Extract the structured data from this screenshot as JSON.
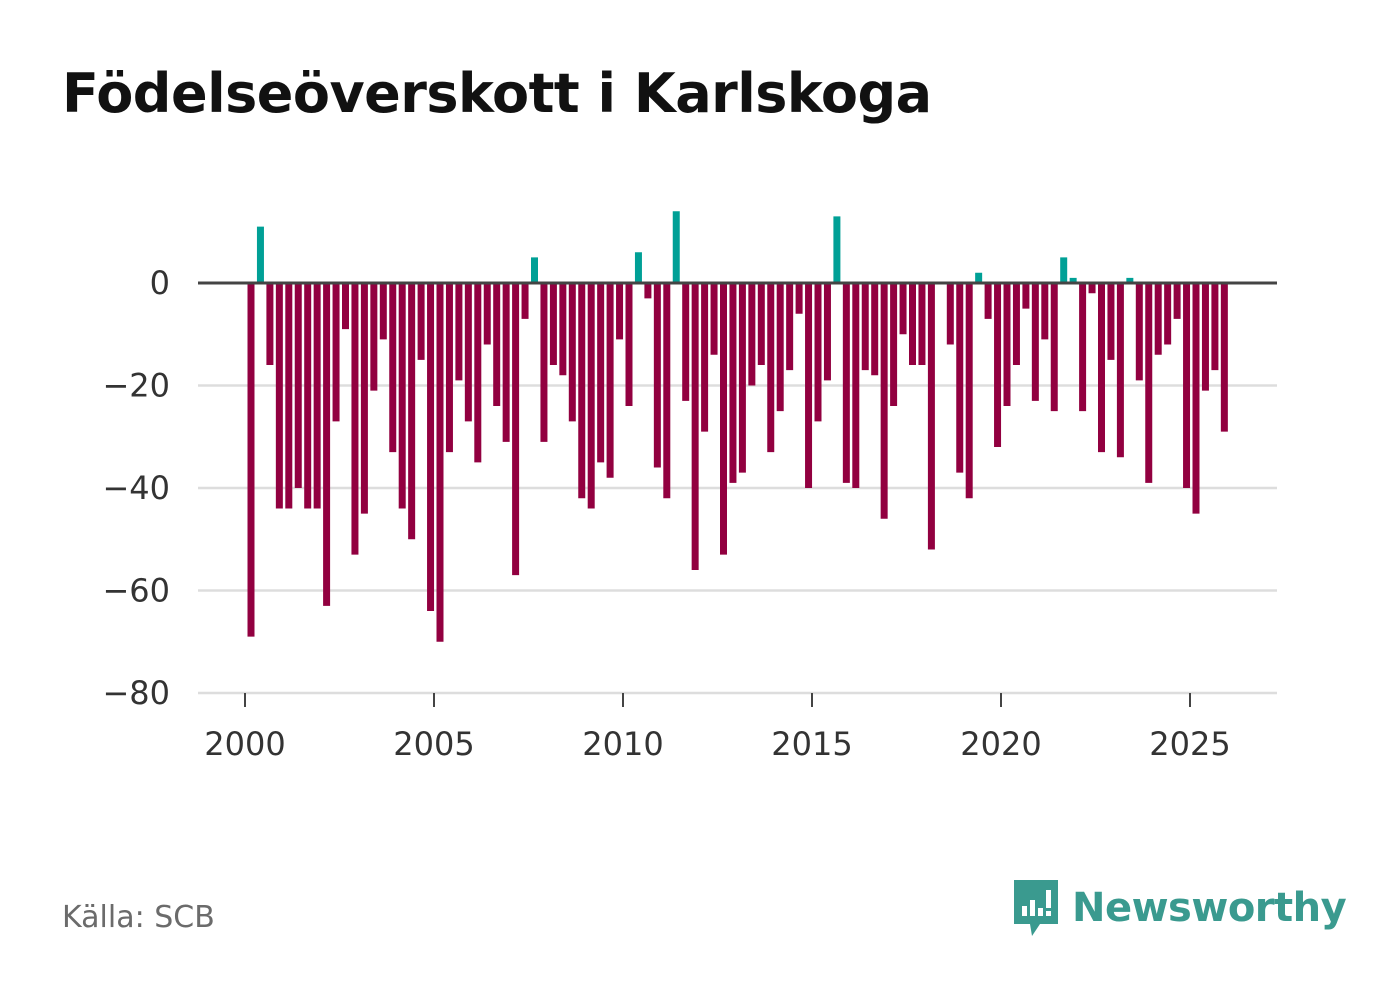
{
  "title": "Födelseöverskott i Karlskoga",
  "source": "Källa: SCB",
  "brand": "Newsworthy",
  "colors": {
    "positive": "#00a096",
    "negative": "#920040",
    "zero_line": "#444444",
    "grid": "#dddddd",
    "brand": "#3a9a8f"
  },
  "chart_data": {
    "type": "bar",
    "title": "Födelseöverskott i Karlskoga",
    "xlabel": "",
    "ylabel": "",
    "x_start": 2000,
    "x_step": 0.25,
    "ylim": [
      -80,
      15
    ],
    "y_ticks": [
      0,
      -20,
      -40,
      -60,
      -80
    ],
    "y_tick_labels": [
      "0",
      "−20",
      "−40",
      "−60",
      "−80"
    ],
    "x_ticks": [
      2000,
      2005,
      2010,
      2015,
      2020,
      2025
    ],
    "x_tick_labels": [
      "2000",
      "2005",
      "2010",
      "2015",
      "2020",
      "2025"
    ],
    "values": [
      -69,
      11,
      -16,
      -44,
      -44,
      -40,
      -44,
      -44,
      -63,
      -27,
      -9,
      -53,
      -45,
      -21,
      -11,
      -33,
      -44,
      -50,
      -15,
      -64,
      -70,
      -33,
      -19,
      -27,
      -35,
      -12,
      -24,
      -31,
      -57,
      -7,
      5,
      -31,
      -16,
      -18,
      -27,
      -42,
      -44,
      -35,
      -38,
      -11,
      -24,
      6,
      -3,
      -36,
      -42,
      14,
      -23,
      -56,
      -29,
      -14,
      -53,
      -39,
      -37,
      -20,
      -16,
      -33,
      -25,
      -17,
      -6,
      -40,
      -27,
      -19,
      13,
      -39,
      -40,
      -17,
      -18,
      -46,
      -24,
      -10,
      -16,
      -16,
      -52,
      0,
      -12,
      -37,
      -42,
      2,
      -7,
      -32,
      -24,
      -16,
      -5,
      -23,
      -11,
      -25,
      5,
      1,
      -25,
      -2,
      -33,
      -15,
      -34,
      1,
      -19,
      -39,
      -14,
      -12,
      -7,
      -40,
      -45,
      -21,
      -17,
      -29
    ]
  }
}
